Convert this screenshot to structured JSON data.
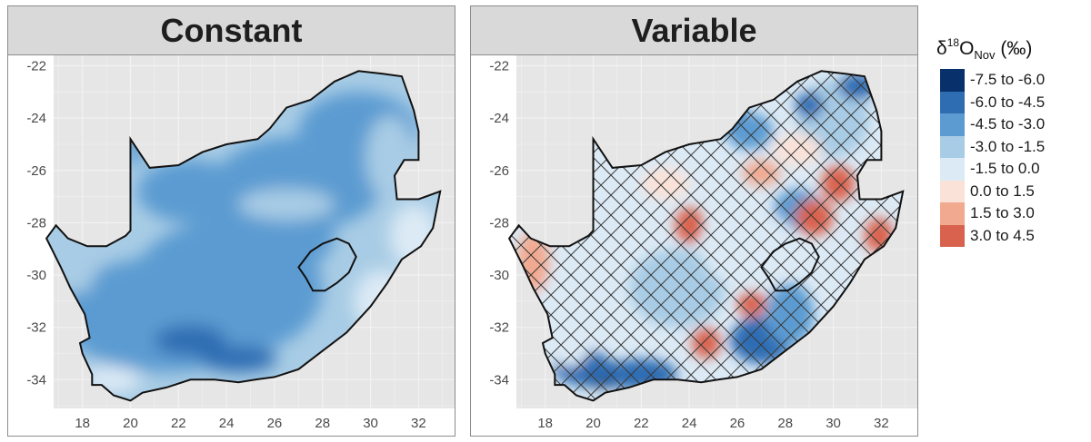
{
  "panels": [
    {
      "title": "Constant",
      "hatched": false
    },
    {
      "title": "Variable",
      "hatched": true
    }
  ],
  "axes": {
    "x_ticks": [
      "18",
      "20",
      "22",
      "24",
      "26",
      "28",
      "30",
      "32"
    ],
    "y_ticks": [
      "-22",
      "-24",
      "-26",
      "-28",
      "-30",
      "-32",
      "-34"
    ],
    "xlim": [
      16.8,
      33.5
    ],
    "ylim": [
      -35.1,
      -21.6
    ],
    "grid": true
  },
  "legend": {
    "title_prefix": "δ",
    "title_sup": "18",
    "title_main": "O",
    "title_sub": "Nov",
    "title_unit": " (‰)",
    "placement": "right",
    "items": [
      {
        "label": "-7.5 to -6.0",
        "color": "#08306b"
      },
      {
        "label": "-6.0 to -4.5",
        "color": "#2f6db3"
      },
      {
        "label": "-4.5 to -3.0",
        "color": "#5b9bd1"
      },
      {
        "label": "-3.0 to -1.5",
        "color": "#a8cce5"
      },
      {
        "label": "-1.5 to 0.0",
        "color": "#dceaf5"
      },
      {
        "label": "0.0 to 1.5",
        "color": "#fbe2d8"
      },
      {
        "label": "1.5 to 3.0",
        "color": "#f1a990"
      },
      {
        "label": "3.0 to 4.5",
        "color": "#d9624e"
      }
    ]
  }
}
